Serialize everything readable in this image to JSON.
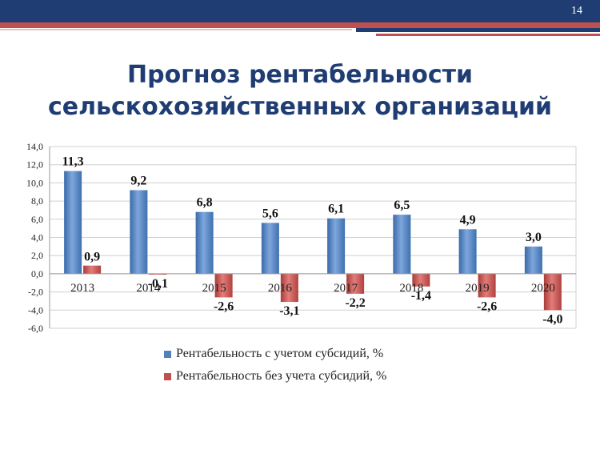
{
  "page": {
    "number": "14"
  },
  "title": {
    "line1": "Прогноз рентабельности",
    "line2": "сельскохозяйственных организаций"
  },
  "colors": {
    "series1": "#4f81bd",
    "series2": "#c0504d",
    "header": "#1f3d73",
    "accent": "#c0504d"
  },
  "chart_data": {
    "type": "bar",
    "categories": [
      "2013",
      "2014",
      "2015",
      "2016",
      "2017",
      "2018",
      "2019",
      "2020"
    ],
    "series": [
      {
        "name": "Рентабельность с учетом субсидий, %",
        "values": [
          11.3,
          9.2,
          6.8,
          5.6,
          6.1,
          6.5,
          4.9,
          3.0
        ],
        "labels": [
          "11,3",
          "9,2",
          "6,8",
          "5,6",
          "6,1",
          "6,5",
          "4,9",
          "3,0"
        ]
      },
      {
        "name": "Рентабельность без учета субсидий, %",
        "values": [
          0.9,
          -0.1,
          -2.6,
          -3.1,
          -2.2,
          -1.4,
          -2.6,
          -4.0
        ],
        "labels": [
          "0,9",
          "-0,1",
          "-2,6",
          "-3,1",
          "-2,2",
          "-1,4",
          "-2,6",
          "-4,0"
        ]
      }
    ],
    "yticks": [
      "14,0",
      "12,0",
      "10,0",
      "8,0",
      "6,0",
      "4,0",
      "2,0",
      "0,0",
      "-2,0",
      "-4,0",
      "-6,0"
    ],
    "ylim": [
      -6,
      14
    ],
    "grid": true,
    "legend_position": "bottom"
  }
}
